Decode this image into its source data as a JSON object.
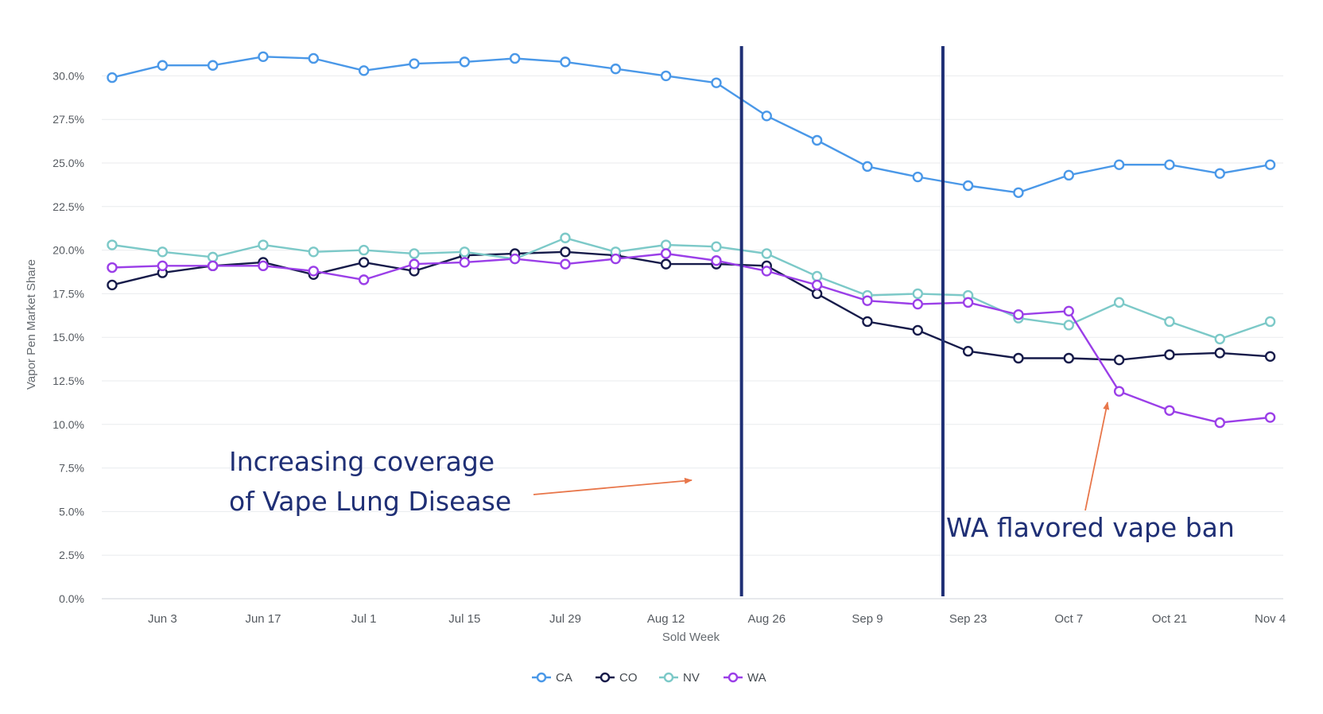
{
  "chart_data": {
    "type": "line",
    "xlabel": "Sold Week",
    "ylabel": "Vapor Pen Market Share",
    "ylim": [
      0,
      32.5
    ],
    "y_ticks": [
      "0.0%",
      "2.5%",
      "5.0%",
      "7.5%",
      "10.0%",
      "12.5%",
      "15.0%",
      "17.5%",
      "20.0%",
      "22.5%",
      "25.0%",
      "27.5%",
      "30.0%"
    ],
    "x_tick_labels": [
      "Jun 3",
      "Jun 17",
      "Jul 1",
      "Jul 15",
      "Jul 29",
      "Aug 12",
      "Aug 26",
      "Sep 9",
      "Sep 23",
      "Oct 7",
      "Oct 21",
      "Nov 4"
    ],
    "x": [
      "May 27",
      "Jun 3",
      "Jun 10",
      "Jun 17",
      "Jun 24",
      "Jul 1",
      "Jul 8",
      "Jul 15",
      "Jul 22",
      "Jul 29",
      "Aug 5",
      "Aug 12",
      "Aug 19",
      "Aug 26",
      "Sep 2",
      "Sep 9",
      "Sep 16",
      "Sep 23",
      "Sep 30",
      "Oct 7",
      "Oct 14",
      "Oct 21",
      "Oct 28",
      "Nov 4"
    ],
    "grid": "horizontal",
    "legend_position": "bottom",
    "series": [
      {
        "name": "CA",
        "color": "#4a98e8",
        "values": [
          29.9,
          30.6,
          30.6,
          31.1,
          31.0,
          30.3,
          30.7,
          30.8,
          31.0,
          30.8,
          30.4,
          30.0,
          29.6,
          27.7,
          26.3,
          24.8,
          24.2,
          23.7,
          23.3,
          24.3,
          24.9,
          24.9,
          24.4,
          24.9
        ]
      },
      {
        "name": "CO",
        "color": "#161b4a",
        "values": [
          18.0,
          18.7,
          19.1,
          19.3,
          18.6,
          19.3,
          18.8,
          19.7,
          19.8,
          19.9,
          19.7,
          19.2,
          19.2,
          19.1,
          17.5,
          15.9,
          15.4,
          14.2,
          13.8,
          13.8,
          13.7,
          14.0,
          14.1,
          13.9
        ]
      },
      {
        "name": "NV",
        "color": "#7cc9c8",
        "values": [
          20.3,
          19.9,
          19.6,
          20.3,
          19.9,
          20.0,
          19.8,
          19.9,
          19.5,
          20.7,
          19.9,
          20.3,
          20.2,
          19.8,
          18.5,
          17.4,
          17.5,
          17.4,
          16.1,
          15.7,
          17.0,
          15.9,
          14.9,
          15.9
        ]
      },
      {
        "name": "WA",
        "color": "#9b3fe8",
        "values": [
          19.0,
          19.1,
          19.1,
          19.1,
          18.8,
          18.3,
          19.2,
          19.3,
          19.5,
          19.2,
          19.5,
          19.8,
          19.4,
          18.8,
          18.0,
          17.1,
          16.9,
          17.0,
          16.3,
          16.5,
          11.9,
          10.8,
          10.1,
          10.4
        ]
      }
    ],
    "annotations": [
      {
        "text_lines": [
          "Increasing coverage",
          "of Vape Lung Disease"
        ],
        "color": "#1f2f75"
      },
      {
        "text_lines": [
          "WA flavored vape ban"
        ],
        "color": "#1f2f75"
      }
    ],
    "arrow_color": "#e8764a",
    "vertical_line_color": "#1f2f75",
    "vertical_markers_at": [
      12.5,
      16.5
    ]
  }
}
